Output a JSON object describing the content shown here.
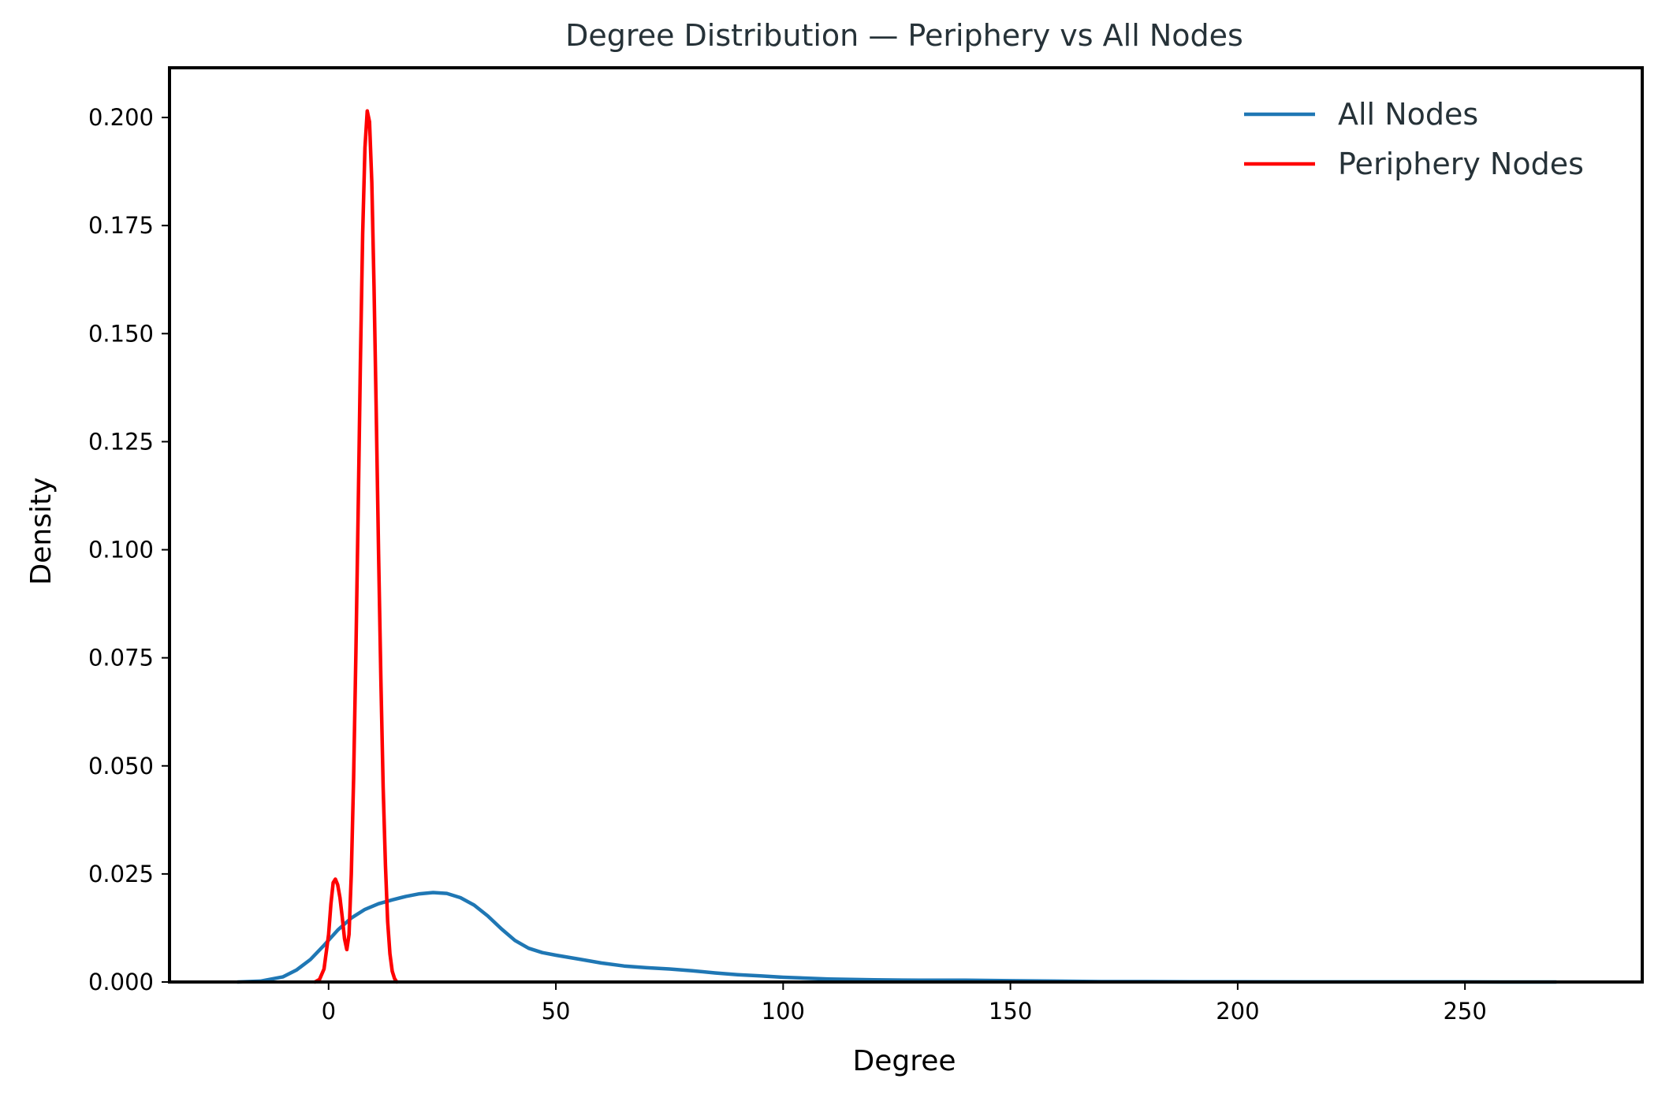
{
  "chart_data": {
    "type": "line",
    "title": "Degree Distribution — Periphery vs All Nodes",
    "xlabel": "Degree",
    "ylabel": "Density",
    "xlim": [
      -35,
      289
    ],
    "ylim": [
      0,
      0.2115
    ],
    "x_ticks": [
      0,
      50,
      100,
      150,
      200,
      250
    ],
    "x_tick_labels": [
      "0",
      "50",
      "100",
      "150",
      "200",
      "250"
    ],
    "y_ticks": [
      0.0,
      0.025,
      0.05,
      0.075,
      0.1,
      0.125,
      0.15,
      0.175,
      0.2
    ],
    "y_tick_labels": [
      "0.000",
      "0.025",
      "0.050",
      "0.075",
      "0.100",
      "0.125",
      "0.150",
      "0.175",
      "0.200"
    ],
    "grid": false,
    "legend_position": "top-right",
    "series": [
      {
        "name": "All Nodes",
        "color": "#1f77b4",
        "points": [
          [
            -20,
            0.0
          ],
          [
            -15,
            0.0002
          ],
          [
            -10,
            0.0012
          ],
          [
            -7,
            0.0028
          ],
          [
            -4,
            0.0052
          ],
          [
            -1,
            0.0085
          ],
          [
            2,
            0.012
          ],
          [
            5,
            0.0148
          ],
          [
            8,
            0.0168
          ],
          [
            11,
            0.0181
          ],
          [
            14,
            0.019
          ],
          [
            17,
            0.0198
          ],
          [
            20,
            0.0204
          ],
          [
            23,
            0.0207
          ],
          [
            26,
            0.0205
          ],
          [
            29,
            0.0195
          ],
          [
            32,
            0.0178
          ],
          [
            35,
            0.0153
          ],
          [
            38,
            0.0123
          ],
          [
            41,
            0.0096
          ],
          [
            44,
            0.0078
          ],
          [
            47,
            0.0068
          ],
          [
            50,
            0.0062
          ],
          [
            55,
            0.0053
          ],
          [
            60,
            0.0044
          ],
          [
            65,
            0.0037
          ],
          [
            70,
            0.0033
          ],
          [
            75,
            0.003
          ],
          [
            80,
            0.0026
          ],
          [
            85,
            0.0021
          ],
          [
            90,
            0.0017
          ],
          [
            95,
            0.0014
          ],
          [
            100,
            0.0011
          ],
          [
            105,
            0.0009
          ],
          [
            110,
            0.0007
          ],
          [
            120,
            0.0005
          ],
          [
            130,
            0.0004
          ],
          [
            140,
            0.0004
          ],
          [
            150,
            0.0003
          ],
          [
            160,
            0.0002
          ],
          [
            170,
            0.0001
          ],
          [
            180,
            0.0001
          ],
          [
            190,
            5e-05
          ],
          [
            200,
            3e-05
          ],
          [
            220,
            2e-05
          ],
          [
            250,
            1e-05
          ],
          [
            270,
            0.0
          ]
        ]
      },
      {
        "name": "Periphery Nodes",
        "color": "#ff0000",
        "points": [
          [
            -3,
            0.0
          ],
          [
            -2,
            0.0006
          ],
          [
            -1,
            0.003
          ],
          [
            0,
            0.011
          ],
          [
            0.5,
            0.018
          ],
          [
            1,
            0.023
          ],
          [
            1.5,
            0.0238
          ],
          [
            2,
            0.0225
          ],
          [
            2.5,
            0.0195
          ],
          [
            3,
            0.015
          ],
          [
            3.5,
            0.01
          ],
          [
            4,
            0.0075
          ],
          [
            4.5,
            0.011
          ],
          [
            5,
            0.025
          ],
          [
            5.5,
            0.047
          ],
          [
            6,
            0.076
          ],
          [
            6.5,
            0.109
          ],
          [
            7,
            0.143
          ],
          [
            7.5,
            0.173
          ],
          [
            8,
            0.193
          ],
          [
            8.5,
            0.2015
          ],
          [
            9,
            0.199
          ],
          [
            9.5,
            0.185
          ],
          [
            10,
            0.161
          ],
          [
            10.5,
            0.131
          ],
          [
            11,
            0.099
          ],
          [
            11.5,
            0.07
          ],
          [
            12,
            0.045
          ],
          [
            12.5,
            0.027
          ],
          [
            13,
            0.014
          ],
          [
            13.5,
            0.0065
          ],
          [
            14,
            0.0025
          ],
          [
            14.5,
            0.0008
          ],
          [
            15,
            0.0
          ]
        ]
      }
    ]
  }
}
